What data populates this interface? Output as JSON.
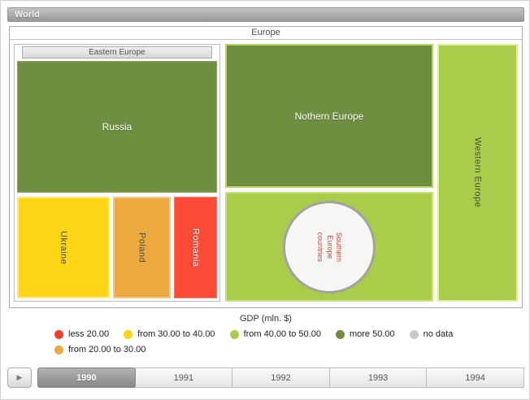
{
  "breadcrumb": {
    "label": "World"
  },
  "chart_data": {
    "type": "treemap",
    "root_label": "World",
    "group_label": "Europe",
    "subgroup_label": "Eastern Europe",
    "selected_year": "1990",
    "legend": {
      "title": "GDP (mln. $)",
      "entries": [
        {
          "label": "less 20.00",
          "color": "#fb3b27"
        },
        {
          "label": "from 30.00 to 40.00",
          "color": "#ffd616"
        },
        {
          "label": "from 40.00 to 50.00",
          "color": "#a9cd4b"
        },
        {
          "label": "more 50.00",
          "color": "#6d8f3f"
        },
        {
          "label": "no data",
          "color": "#c9c9c9"
        },
        {
          "label": "from 20.00 to 30.00",
          "color": "#eba93e"
        }
      ]
    },
    "nodes": {
      "russia": {
        "name": "Russia",
        "parent": "Eastern Europe",
        "gdp_category": "more 50.00",
        "color": "#6d8f3f",
        "border": "#87a554"
      },
      "ukraine": {
        "name": "Ukraine",
        "parent": "Eastern Europe",
        "gdp_category": "from 30.00 to 40.00",
        "color": "#ffd616",
        "border": "#ffe873"
      },
      "poland": {
        "name": "Poland",
        "parent": "Eastern Europe",
        "gdp_category": "from 20.00 to 30.00",
        "color": "#eba93e",
        "border": "#f3c87e"
      },
      "romania": {
        "name": "Romania",
        "parent": "Eastern Europe",
        "gdp_category": "less 20.00",
        "color": "#fb4a35",
        "border": "#fc7765"
      },
      "northern_europe": {
        "name": "Nothern Europe",
        "parent": "Europe",
        "gdp_category": "more 50.00",
        "color": "#6d8f3f",
        "border": "#b9d75c"
      },
      "southern_europe": {
        "name": "Southern Europe countries",
        "parent": "Europe",
        "gdp_category": "from 40.00 to 50.00",
        "color": "#a9cd4b",
        "border": "#c8e37e"
      },
      "western_europe": {
        "name": "Western Europe",
        "parent": "Europe",
        "gdp_category": "from 40.00 to 50.00",
        "color": "#a9cd4b",
        "border": "#ddef9f"
      }
    }
  },
  "timeline": {
    "play_icon": "▶",
    "selected_year": "1990",
    "years": [
      {
        "label": "1990",
        "selected": true
      },
      {
        "label": "1991",
        "selected": false
      },
      {
        "label": "1992",
        "selected": false
      },
      {
        "label": "1993",
        "selected": false
      },
      {
        "label": "1994",
        "selected": false
      }
    ]
  }
}
